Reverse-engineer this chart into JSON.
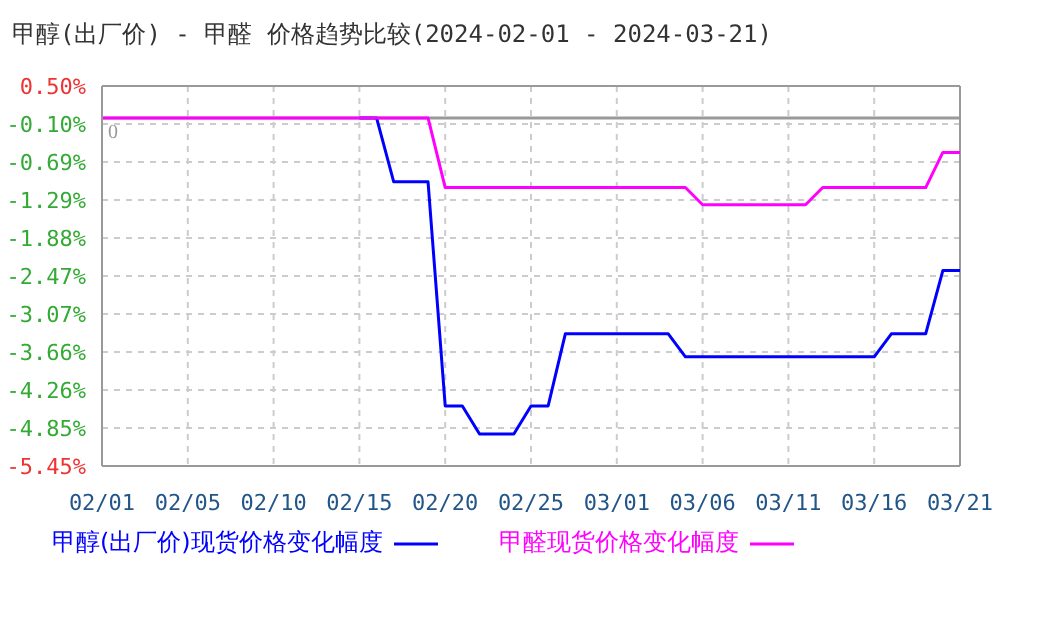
{
  "chart_data": {
    "type": "line",
    "title": "甲醇(出厂价) - 甲醛 价格趋势比较(2024-02-01 - 2024-03-21)",
    "categories": [
      "02/01",
      null,
      null,
      null,
      null,
      "02/05",
      null,
      null,
      null,
      null,
      "02/10",
      null,
      null,
      null,
      null,
      "02/15",
      null,
      null,
      null,
      null,
      "02/20",
      null,
      null,
      null,
      null,
      "02/25",
      null,
      null,
      null,
      null,
      "03/01",
      null,
      null,
      null,
      null,
      "03/06",
      null,
      null,
      null,
      null,
      "03/11",
      null,
      null,
      null,
      null,
      "03/16",
      null,
      null,
      null,
      null,
      "03/21"
    ],
    "series": [
      {
        "name": "甲醇(出厂价)现货价格变化幅度",
        "color": "#0000ff",
        "values": [
          null,
          null,
          null,
          null,
          null,
          null,
          null,
          null,
          null,
          null,
          null,
          null,
          null,
          null,
          null,
          0,
          0,
          -1.0,
          -1.0,
          -1.0,
          -4.51,
          -4.51,
          -4.95,
          -4.95,
          -4.95,
          -4.51,
          -4.51,
          -3.38,
          -3.38,
          -3.38,
          -3.38,
          -3.38,
          -3.38,
          -3.38,
          -3.74,
          -3.74,
          -3.74,
          -3.74,
          -3.74,
          -3.74,
          -3.74,
          -3.74,
          -3.74,
          -3.74,
          -3.74,
          -3.74,
          -3.38,
          -3.38,
          -3.38,
          -2.39,
          -2.39
        ]
      },
      {
        "name": "甲醛现货价格变化幅度",
        "color": "#ff00ff",
        "values": [
          0,
          0,
          0,
          0,
          0,
          0,
          0,
          0,
          0,
          0,
          0,
          0,
          0,
          0,
          0,
          0,
          0,
          0,
          0,
          0,
          -1.09,
          -1.09,
          -1.09,
          -1.09,
          -1.09,
          -1.09,
          -1.09,
          -1.09,
          -1.09,
          -1.09,
          -1.09,
          -1.09,
          -1.09,
          -1.09,
          -1.09,
          -1.36,
          -1.36,
          -1.36,
          -1.36,
          -1.36,
          -1.36,
          -1.36,
          -1.09,
          -1.09,
          -1.09,
          -1.09,
          -1.09,
          -1.09,
          -1.09,
          -0.54,
          -0.54
        ]
      }
    ],
    "ylim": [
      -5.45,
      0.5
    ],
    "yticks": [
      {
        "value": 0.5,
        "label": "0.50%"
      },
      {
        "value": -0.095,
        "label": "-0.10%"
      },
      {
        "value": -0.69,
        "label": "-0.69%"
      },
      {
        "value": -1.285,
        "label": "-1.29%"
      },
      {
        "value": -1.88,
        "label": "-1.88%"
      },
      {
        "value": -2.475,
        "label": "-2.47%"
      },
      {
        "value": -3.07,
        "label": "-3.07%"
      },
      {
        "value": -3.665,
        "label": "-3.66%"
      },
      {
        "value": -4.26,
        "label": "-4.26%"
      },
      {
        "value": -4.855,
        "label": "-4.85%"
      },
      {
        "value": -5.45,
        "label": "-5.45%"
      }
    ],
    "ref_lines": [
      {
        "axis": "y",
        "value": 0,
        "label": "0",
        "color": "#999999"
      }
    ],
    "grid": true,
    "legend": "bottom",
    "marker": "none",
    "line_style": "solid"
  }
}
